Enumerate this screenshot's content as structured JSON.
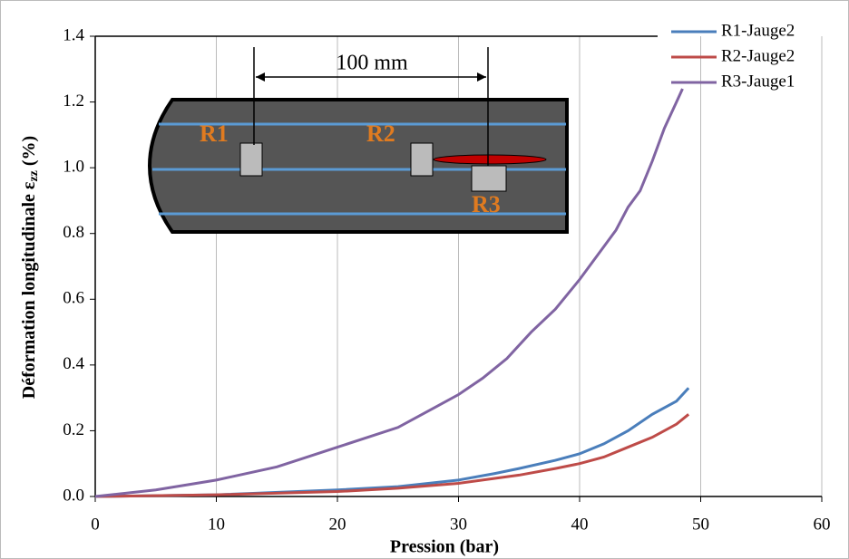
{
  "chart_data": {
    "type": "line",
    "xlabel": "Pression (bar)",
    "ylabel": "Déformation longitudinale  ε",
    "ylabel_sub": "zz",
    "ylabel_unit": " (%)",
    "xlim": [
      0,
      60
    ],
    "xticks": [
      0,
      10,
      20,
      30,
      40,
      50,
      60
    ],
    "ylim": [
      0,
      1.4
    ],
    "yticks": [
      {
        "value": 0,
        "label": "0.0"
      },
      {
        "value": 0.2,
        "label": "0.2"
      },
      {
        "value": 0.4,
        "label": "0.4"
      },
      {
        "value": 0.6,
        "label": "0.6"
      },
      {
        "value": 0.8,
        "label": "0.8"
      },
      {
        "value": 1,
        "label": "1.0"
      },
      {
        "value": 1.2,
        "label": "1.2"
      },
      {
        "value": 1.4,
        "label": "1.4"
      }
    ],
    "grid": "x",
    "legend": "top-right",
    "series": [
      {
        "name": "R1-Jauge2",
        "color": "#4a7ebb",
        "x": [
          0,
          10,
          20,
          25,
          30,
          33,
          35,
          38,
          40,
          42,
          44,
          46,
          48,
          49
        ],
        "values": [
          0,
          0.005,
          0.02,
          0.03,
          0.05,
          0.07,
          0.085,
          0.11,
          0.13,
          0.16,
          0.2,
          0.25,
          0.29,
          0.33
        ]
      },
      {
        "name": "R2-Jauge2",
        "color": "#be4b48",
        "x": [
          0,
          10,
          20,
          25,
          30,
          33,
          35,
          38,
          40,
          42,
          44,
          46,
          48,
          49
        ],
        "values": [
          0,
          0.005,
          0.015,
          0.025,
          0.04,
          0.055,
          0.065,
          0.085,
          0.1,
          0.12,
          0.15,
          0.18,
          0.22,
          0.25
        ]
      },
      {
        "name": "R3-Jauge1",
        "color": "#8064a2",
        "x": [
          0,
          5,
          10,
          15,
          20,
          25,
          28,
          30,
          32,
          34,
          36,
          38,
          40,
          42,
          43,
          44,
          45,
          46,
          47,
          48,
          48.5
        ],
        "values": [
          0,
          0.02,
          0.05,
          0.09,
          0.15,
          0.21,
          0.27,
          0.31,
          0.36,
          0.42,
          0.5,
          0.57,
          0.66,
          0.76,
          0.81,
          0.88,
          0.93,
          1.02,
          1.12,
          1.2,
          1.24
        ]
      }
    ],
    "inset": {
      "dimension": "100 mm",
      "labels": [
        "R1",
        "R2",
        "R3"
      ]
    }
  }
}
